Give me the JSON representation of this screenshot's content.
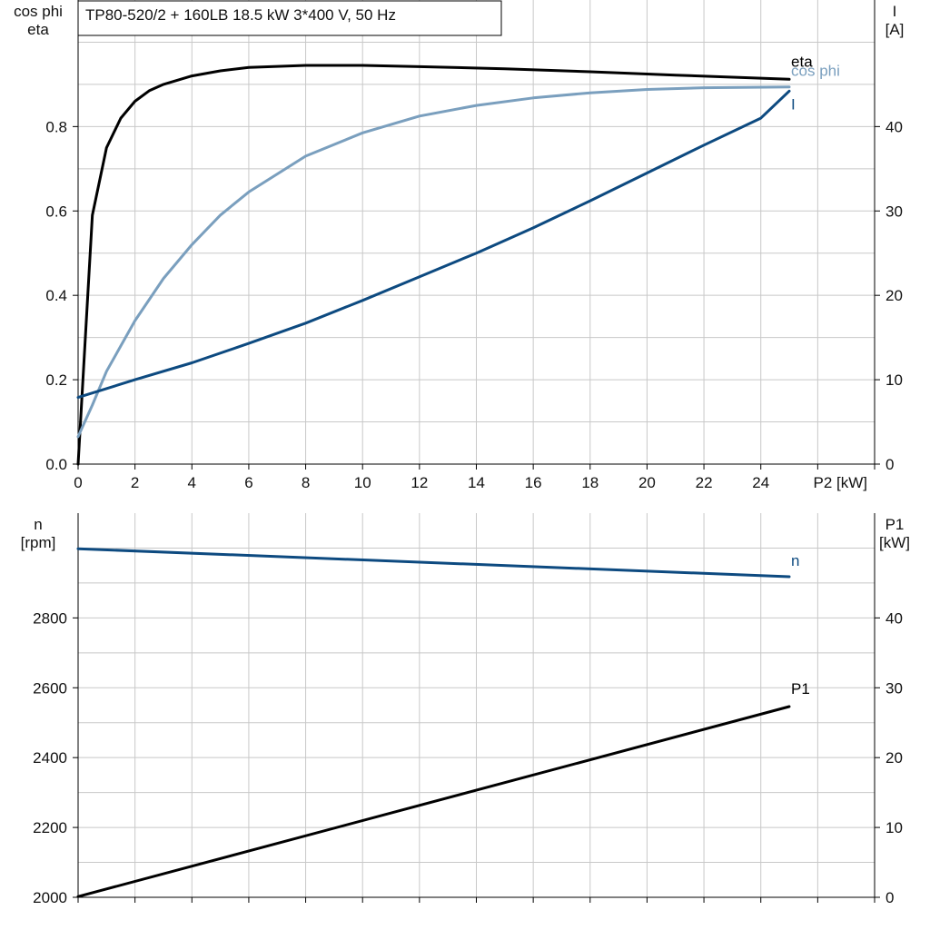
{
  "title": "TP80-520/2 + 160LB   18.5 kW   3*400 V, 50 Hz",
  "colors": {
    "eta": "#000000",
    "cos_phi": "#7a9fbe",
    "current": "#0d4a80",
    "speed": "#0d4a80",
    "p1": "#000000",
    "grid": "#c8c8c8"
  },
  "chart_data": [
    {
      "type": "line",
      "title": "TP80-520/2 + 160LB   18.5 kW   3*400 V, 50 Hz",
      "xlabel": "P2 [kW]",
      "xlim": [
        0,
        28
      ],
      "xticks": [
        0,
        2,
        4,
        6,
        8,
        10,
        12,
        14,
        16,
        18,
        20,
        22,
        24
      ],
      "y_left": {
        "label_lines": [
          "cos phi",
          "eta"
        ],
        "lim": [
          0,
          1.1
        ],
        "ticks": [
          0.0,
          0.2,
          0.4,
          0.6,
          0.8
        ],
        "tick_labels": [
          "0.0",
          "0.2",
          "0.4",
          "0.6",
          "0.8"
        ]
      },
      "y_right": {
        "label_lines": [
          "I",
          "[A]"
        ],
        "lim": [
          0,
          55
        ],
        "ticks": [
          0,
          10,
          20,
          30,
          40
        ],
        "tick_labels": [
          "0",
          "10",
          "20",
          "30",
          "40"
        ]
      },
      "grid": true,
      "series": [
        {
          "name": "eta",
          "axis": "left",
          "color": "#000000",
          "x": [
            0,
            0.5,
            1,
            1.5,
            2,
            2.5,
            3,
            4,
            5,
            6,
            8,
            10,
            12,
            15,
            18,
            21,
            25
          ],
          "y": [
            0.0,
            0.59,
            0.75,
            0.82,
            0.86,
            0.885,
            0.9,
            0.92,
            0.932,
            0.94,
            0.945,
            0.945,
            0.942,
            0.937,
            0.93,
            0.922,
            0.912
          ]
        },
        {
          "name": "cos phi",
          "axis": "left",
          "color": "#7a9fbe",
          "x": [
            0,
            0.5,
            1,
            2,
            3,
            4,
            5,
            6,
            8,
            10,
            12,
            14,
            16,
            18,
            20,
            22,
            25
          ],
          "y": [
            0.065,
            0.14,
            0.22,
            0.34,
            0.44,
            0.52,
            0.59,
            0.645,
            0.73,
            0.785,
            0.825,
            0.85,
            0.868,
            0.88,
            0.888,
            0.892,
            0.894
          ]
        },
        {
          "name": "I",
          "axis": "right",
          "color": "#0d4a80",
          "x": [
            0,
            2,
            4,
            6,
            8,
            10,
            12,
            14,
            16,
            18,
            20,
            22,
            24,
            25
          ],
          "y": [
            7.9,
            10.0,
            12.0,
            14.3,
            16.7,
            19.4,
            22.2,
            25.0,
            28.0,
            31.2,
            34.5,
            37.8,
            41.0,
            44.2
          ]
        }
      ]
    },
    {
      "type": "line",
      "xlim": [
        0,
        28
      ],
      "y_left": {
        "label_lines": [
          "n",
          "[rpm]"
        ],
        "lim": [
          2000,
          3100
        ],
        "ticks": [
          2000,
          2200,
          2400,
          2600,
          2800
        ],
        "tick_labels": [
          "2000",
          "2200",
          "2400",
          "2600",
          "2800"
        ]
      },
      "y_right": {
        "label_lines": [
          "P1",
          "[kW]"
        ],
        "lim": [
          0,
          55
        ],
        "ticks": [
          0,
          10,
          20,
          30,
          40
        ],
        "tick_labels": [
          "0",
          "10",
          "20",
          "30",
          "40"
        ]
      },
      "grid": true,
      "series": [
        {
          "name": "n",
          "axis": "left",
          "color": "#0d4a80",
          "x": [
            0,
            25
          ],
          "y": [
            2998,
            2918
          ]
        },
        {
          "name": "P1",
          "axis": "right",
          "color": "#000000",
          "x": [
            0,
            25
          ],
          "y": [
            0.1,
            27.3
          ]
        }
      ]
    }
  ]
}
